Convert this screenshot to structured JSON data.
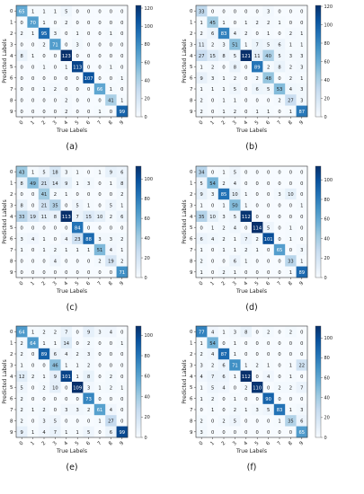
{
  "chart_data": [
    {
      "type": "heatmap",
      "panel_label": "(a)",
      "xlabel": "True Labels",
      "ylabel": "Predicted Labels",
      "x_categories": [
        "0",
        "1",
        "2",
        "3",
        "4",
        "5",
        "6",
        "7",
        "8",
        "9"
      ],
      "y_categories": [
        "0",
        "1",
        "2",
        "3",
        "4",
        "5",
        "6",
        "7",
        "8",
        "9"
      ],
      "matrix": [
        [
          65,
          1,
          1,
          1,
          5,
          0,
          0,
          0,
          0,
          0
        ],
        [
          0,
          70,
          1,
          0,
          2,
          0,
          0,
          0,
          0,
          0
        ],
        [
          2,
          1,
          95,
          3,
          0,
          1,
          0,
          0,
          1,
          0
        ],
        [
          0,
          0,
          2,
          71,
          0,
          3,
          0,
          0,
          0,
          0
        ],
        [
          8,
          1,
          0,
          0,
          123,
          0,
          0,
          0,
          0,
          0
        ],
        [
          0,
          0,
          1,
          0,
          1,
          113,
          0,
          0,
          1,
          0
        ],
        [
          0,
          0,
          0,
          0,
          0,
          0,
          107,
          0,
          0,
          1
        ],
        [
          0,
          0,
          1,
          2,
          0,
          0,
          0,
          66,
          1,
          0
        ],
        [
          0,
          0,
          0,
          0,
          2,
          0,
          0,
          0,
          41,
          1
        ],
        [
          0,
          0,
          0,
          0,
          2,
          0,
          0,
          1,
          0,
          99
        ]
      ],
      "colorbar_ticks": [
        0,
        20,
        40,
        60,
        80,
        100,
        120
      ],
      "vmax": 123
    },
    {
      "type": "heatmap",
      "panel_label": "(b)",
      "xlabel": "True Labels",
      "ylabel": "Predicted Labels",
      "x_categories": [
        "0",
        "1",
        "2",
        "3",
        "4",
        "5",
        "6",
        "7",
        "8",
        "9"
      ],
      "y_categories": [
        "0",
        "1",
        "2",
        "3",
        "4",
        "5",
        "6",
        "7",
        "8",
        "9"
      ],
      "matrix": [
        [
          33,
          0,
          0,
          0,
          0,
          0,
          3,
          0,
          0,
          0
        ],
        [
          1,
          45,
          1,
          0,
          1,
          2,
          2,
          1,
          0,
          0
        ],
        [
          2,
          6,
          83,
          4,
          2,
          0,
          1,
          0,
          2,
          1
        ],
        [
          11,
          2,
          3,
          51,
          1,
          7,
          5,
          6,
          1,
          1
        ],
        [
          27,
          15,
          8,
          5,
          121,
          11,
          40,
          5,
          3,
          3
        ],
        [
          1,
          2,
          0,
          8,
          0,
          89,
          2,
          8,
          2,
          3
        ],
        [
          9,
          3,
          1,
          2,
          0,
          2,
          48,
          0,
          2,
          1
        ],
        [
          1,
          1,
          1,
          5,
          0,
          6,
          5,
          53,
          4,
          3
        ],
        [
          2,
          0,
          1,
          1,
          0,
          0,
          0,
          2,
          27,
          3
        ],
        [
          2,
          0,
          1,
          2,
          0,
          1,
          1,
          0,
          1,
          87
        ]
      ],
      "colorbar_ticks": [
        0,
        20,
        40,
        60,
        80,
        100,
        120
      ],
      "vmax": 121
    },
    {
      "type": "heatmap",
      "panel_label": "(c)",
      "xlabel": "True Labels",
      "ylabel": "Predicted Labels",
      "x_categories": [
        "0",
        "1",
        "2",
        "3",
        "4",
        "5",
        "6",
        "7",
        "8",
        "9"
      ],
      "y_categories": [
        "0",
        "1",
        "2",
        "3",
        "4",
        "5",
        "6",
        "7",
        "8",
        "9"
      ],
      "matrix": [
        [
          43,
          1,
          5,
          18,
          3,
          1,
          0,
          1,
          9,
          6
        ],
        [
          8,
          49,
          21,
          14,
          9,
          1,
          3,
          0,
          1,
          8
        ],
        [
          0,
          0,
          41,
          2,
          1,
          0,
          0,
          0,
          0,
          2
        ],
        [
          8,
          0,
          21,
          35,
          0,
          5,
          1,
          0,
          5,
          1
        ],
        [
          33,
          19,
          11,
          8,
          113,
          7,
          15,
          10,
          2,
          6
        ],
        [
          0,
          0,
          0,
          0,
          0,
          84,
          0,
          0,
          0,
          0
        ],
        [
          3,
          4,
          1,
          0,
          4,
          23,
          88,
          3,
          3,
          2
        ],
        [
          1,
          0,
          1,
          2,
          1,
          1,
          1,
          51,
          4,
          1
        ],
        [
          0,
          0,
          0,
          4,
          0,
          0,
          0,
          2,
          19,
          2
        ],
        [
          0,
          0,
          0,
          0,
          0,
          0,
          0,
          0,
          0,
          71
        ]
      ],
      "colorbar_ticks": [
        0,
        20,
        40,
        60,
        80,
        100
      ],
      "vmax": 113
    },
    {
      "type": "heatmap",
      "panel_label": "(d)",
      "xlabel": "True Labels",
      "ylabel": "Predicted Labels",
      "x_categories": [
        "0",
        "1",
        "2",
        "3",
        "4",
        "5",
        "6",
        "7",
        "8",
        "9"
      ],
      "y_categories": [
        "0",
        "1",
        "2",
        "3",
        "4",
        "5",
        "6",
        "7",
        "8",
        "9"
      ],
      "matrix": [
        [
          34,
          0,
          1,
          5,
          0,
          0,
          0,
          0,
          0,
          0
        ],
        [
          5,
          54,
          2,
          4,
          0,
          0,
          0,
          0,
          0,
          0
        ],
        [
          9,
          3,
          85,
          10,
          1,
          0,
          0,
          3,
          10,
          0
        ],
        [
          1,
          0,
          1,
          50,
          1,
          0,
          0,
          0,
          0,
          1
        ],
        [
          35,
          10,
          3,
          5,
          112,
          0,
          0,
          0,
          0,
          0
        ],
        [
          0,
          1,
          2,
          4,
          0,
          114,
          5,
          0,
          1,
          0
        ],
        [
          6,
          4,
          2,
          1,
          7,
          2,
          101,
          0,
          1,
          0
        ],
        [
          1,
          0,
          1,
          1,
          2,
          1,
          0,
          65,
          0,
          3
        ],
        [
          2,
          0,
          0,
          6,
          1,
          0,
          0,
          0,
          33,
          1
        ],
        [
          1,
          0,
          2,
          1,
          0,
          0,
          0,
          0,
          1,
          89
        ]
      ],
      "colorbar_ticks": [
        0,
        20,
        40,
        60,
        80,
        100
      ],
      "vmax": 114
    },
    {
      "type": "heatmap",
      "panel_label": "(e)",
      "xlabel": "True Labels",
      "ylabel": "Predicted Labels",
      "x_categories": [
        "0",
        "1",
        "2",
        "3",
        "4",
        "5",
        "6",
        "7",
        "8",
        "9"
      ],
      "y_categories": [
        "0",
        "1",
        "2",
        "3",
        "4",
        "5",
        "6",
        "7",
        "8",
        "9"
      ],
      "matrix": [
        [
          64,
          1,
          2,
          2,
          7,
          0,
          9,
          3,
          4,
          0
        ],
        [
          2,
          64,
          1,
          1,
          14,
          0,
          2,
          0,
          0,
          1
        ],
        [
          2,
          0,
          89,
          6,
          4,
          2,
          3,
          0,
          0,
          0
        ],
        [
          1,
          0,
          0,
          46,
          1,
          1,
          2,
          0,
          0,
          0
        ],
        [
          12,
          2,
          1,
          9,
          101,
          1,
          8,
          0,
          2,
          0
        ],
        [
          5,
          0,
          2,
          10,
          0,
          109,
          3,
          1,
          2,
          1
        ],
        [
          2,
          0,
          0,
          0,
          0,
          0,
          73,
          0,
          0,
          0
        ],
        [
          2,
          1,
          2,
          0,
          3,
          3,
          2,
          61,
          4,
          0
        ],
        [
          2,
          0,
          3,
          5,
          0,
          0,
          0,
          1,
          27,
          0
        ],
        [
          9,
          1,
          4,
          7,
          1,
          1,
          5,
          0,
          6,
          99
        ]
      ],
      "colorbar_ticks": [
        0,
        20,
        40,
        60,
        80,
        100
      ],
      "vmax": 109
    },
    {
      "type": "heatmap",
      "panel_label": "(f)",
      "xlabel": "True Labels",
      "ylabel": "Predicted Labels",
      "x_categories": [
        "0",
        "1",
        "2",
        "3",
        "4",
        "5",
        "6",
        "7",
        "8",
        "9"
      ],
      "y_categories": [
        "0",
        "1",
        "2",
        "3",
        "4",
        "5",
        "6",
        "7",
        "8",
        "9"
      ],
      "matrix": [
        [
          77,
          4,
          1,
          3,
          8,
          0,
          2,
          0,
          2,
          0
        ],
        [
          1,
          54,
          0,
          1,
          0,
          0,
          0,
          0,
          0,
          0
        ],
        [
          2,
          4,
          87,
          1,
          0,
          0,
          0,
          0,
          0,
          0
        ],
        [
          3,
          2,
          6,
          71,
          1,
          2,
          1,
          0,
          1,
          22
        ],
        [
          4,
          7,
          6,
          1,
          112,
          0,
          4,
          0,
          1,
          0
        ],
        [
          1,
          5,
          4,
          0,
          2,
          110,
          0,
          2,
          2,
          7
        ],
        [
          1,
          2,
          0,
          1,
          0,
          0,
          90,
          0,
          0,
          0
        ],
        [
          0,
          1,
          0,
          2,
          1,
          3,
          5,
          83,
          1,
          3
        ],
        [
          2,
          0,
          2,
          5,
          0,
          0,
          0,
          1,
          35,
          6
        ],
        [
          3,
          0,
          0,
          0,
          0,
          0,
          0,
          0,
          0,
          65
        ]
      ],
      "colorbar_ticks": [
        0,
        20,
        40,
        60,
        80,
        100
      ],
      "vmax": 112
    }
  ]
}
